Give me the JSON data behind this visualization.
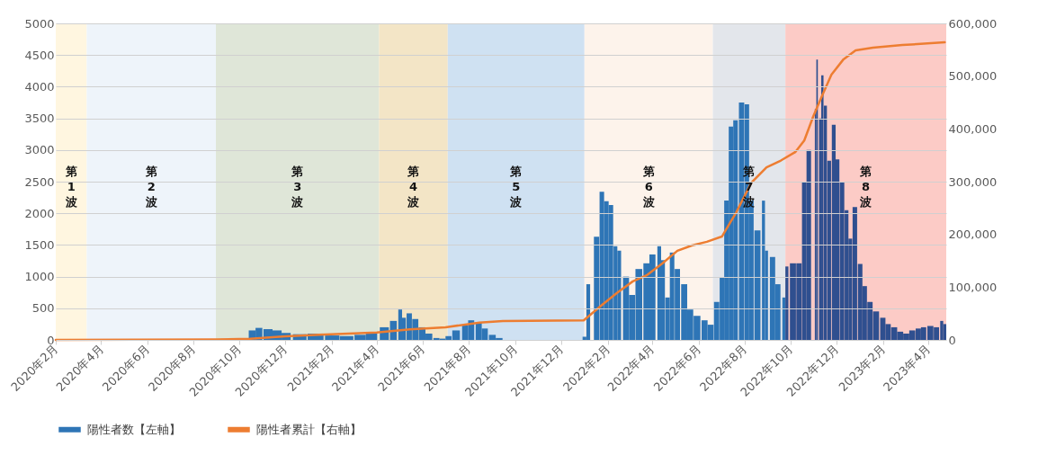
{
  "chart_data": {
    "type": "bar",
    "xlim": [
      "2020-02-01",
      "2023-04-25"
    ],
    "xticks": [
      {
        "value": "2020-02",
        "label": "2020年2月"
      },
      {
        "value": "2020-04",
        "label": "2020年4月"
      },
      {
        "value": "2020-06",
        "label": "2020年6月"
      },
      {
        "value": "2020-08",
        "label": "2020年8月"
      },
      {
        "value": "2020-10",
        "label": "2020年10月"
      },
      {
        "value": "2020-12",
        "label": "2020年12月"
      },
      {
        "value": "2021-02",
        "label": "2021年2月"
      },
      {
        "value": "2021-04",
        "label": "2021年4月"
      },
      {
        "value": "2021-06",
        "label": "2021年6月"
      },
      {
        "value": "2021-08",
        "label": "2021年8月"
      },
      {
        "value": "2021-10",
        "label": "2021年10月"
      },
      {
        "value": "2021-12",
        "label": "2021年12月"
      },
      {
        "value": "2022-02",
        "label": "2022年2月"
      },
      {
        "value": "2022-04",
        "label": "2022年4月"
      },
      {
        "value": "2022-06",
        "label": "2022年6月"
      },
      {
        "value": "2022-08",
        "label": "2022年8月"
      },
      {
        "value": "2022-10",
        "label": "2022年10月"
      },
      {
        "value": "2022-12",
        "label": "2022年12月"
      },
      {
        "value": "2023-02",
        "label": "2023年2月"
      },
      {
        "value": "2023-04",
        "label": "2023年4月"
      }
    ],
    "ylim": [
      0,
      5000
    ],
    "yticks": [
      0,
      500,
      1000,
      1500,
      2000,
      2500,
      3000,
      3500,
      4000,
      4500,
      5000
    ],
    "y2lim": [
      0,
      600000
    ],
    "y2ticks": [
      0,
      {
        "value": 100000,
        "label": "100,000"
      },
      {
        "value": 200000,
        "label": "200,000"
      },
      {
        "value": 300000,
        "label": "300,000"
      },
      {
        "value": 400000,
        "label": "400,000"
      },
      {
        "value": 500000,
        "label": "500,000"
      },
      {
        "value": 600000,
        "label": "600,000"
      }
    ],
    "grid": "y",
    "legend": "bottom",
    "bands": [
      {
        "axis": "x",
        "from": "2020-02-01",
        "to": "2020-03-13",
        "label": "第1波",
        "color": "#fff6e0"
      },
      {
        "axis": "x",
        "from": "2020-03-13",
        "to": "2020-08-31",
        "label": "第2波",
        "color": "#eef4fa"
      },
      {
        "axis": "x",
        "from": "2020-08-31",
        "to": "2021-04-04",
        "label": "第3波",
        "color": "#dfe6d8"
      },
      {
        "axis": "x",
        "from": "2021-04-04",
        "to": "2021-07-04",
        "label": "第4波",
        "color": "#f3e5c6"
      },
      {
        "axis": "x",
        "from": "2021-07-04",
        "to": "2022-01-01",
        "label": "第5波",
        "color": "#cfe1f2"
      },
      {
        "axis": "x",
        "from": "2022-01-01",
        "to": "2022-06-20",
        "label": "第6波",
        "color": "#fdf3eb"
      },
      {
        "axis": "x",
        "from": "2022-06-20",
        "to": "2022-09-24",
        "label": "第7波",
        "color": "#e3e6eb"
      },
      {
        "axis": "x",
        "from": "2022-09-24",
        "to": "2023-04-25",
        "label": "第8波",
        "color": "#fccbc6"
      }
    ],
    "series": [
      {
        "name": "陽性者数【左軸】",
        "color": "#2e75b6",
        "x": [
          "2020-10-18",
          "2020-10-27",
          "2020-11-08",
          "2020-11-20",
          "2020-12-02",
          "2020-12-20",
          "2021-01-10",
          "2021-02-01",
          "2021-02-20",
          "2021-03-10",
          "2021-03-25",
          "2021-04-11",
          "2021-04-23",
          "2021-05-02",
          "2021-05-07",
          "2021-05-14",
          "2021-05-22",
          "2021-05-31",
          "2021-06-09",
          "2021-06-19",
          "2021-06-27",
          "2021-07-05",
          "2021-07-15",
          "2021-07-27",
          "2021-08-04",
          "2021-08-14",
          "2021-08-22",
          "2021-09-01",
          "2021-09-10",
          "2022-01-01",
          "2022-01-06",
          "2022-01-17",
          "2022-01-24",
          "2022-01-30",
          "2022-02-05",
          "2022-02-11",
          "2022-02-16",
          "2022-02-25",
          "2022-03-05",
          "2022-03-14",
          "2022-03-24",
          "2022-04-01",
          "2022-04-10",
          "2022-04-15",
          "2022-04-21",
          "2022-04-27",
          "2022-05-04",
          "2022-05-13",
          "2022-05-21",
          "2022-05-30",
          "2022-06-09",
          "2022-06-17",
          "2022-06-25",
          "2022-07-02",
          "2022-07-08",
          "2022-07-14",
          "2022-07-20",
          "2022-07-28",
          "2022-08-04",
          "2022-08-10",
          "2022-08-18",
          "2022-08-26",
          "2022-08-30",
          "2022-09-07",
          "2022-09-14",
          "2022-09-22",
          "2022-09-26",
          "2022-10-04",
          "2022-10-12",
          "2022-10-19",
          "2022-10-25",
          "2022-11-03",
          "2022-11-05",
          "2022-11-09",
          "2022-11-12",
          "2022-11-16",
          "2022-11-21",
          "2022-11-27",
          "2022-12-02",
          "2022-12-08",
          "2022-12-14",
          "2022-12-19",
          "2022-12-25",
          "2023-01-01",
          "2023-01-07",
          "2023-01-14",
          "2023-01-22",
          "2023-01-31",
          "2023-02-07",
          "2023-02-15",
          "2023-02-23",
          "2023-03-03",
          "2023-03-11",
          "2023-03-19",
          "2023-03-26",
          "2023-04-04",
          "2023-04-12",
          "2023-04-19",
          "2023-04-23"
        ],
        "values": [
          150,
          190,
          170,
          150,
          110,
          90,
          100,
          70,
          60,
          80,
          120,
          200,
          300,
          480,
          350,
          420,
          330,
          200,
          100,
          30,
          20,
          60,
          150,
          230,
          310,
          280,
          180,
          80,
          30,
          50,
          880,
          1630,
          2340,
          2190,
          2130,
          1480,
          1410,
          1000,
          710,
          1120,
          1210,
          1350,
          1480,
          1260,
          670,
          1380,
          1120,
          880,
          480,
          380,
          310,
          240,
          600,
          980,
          2200,
          3370,
          3470,
          3750,
          3720,
          2200,
          1730,
          2200,
          1410,
          1310,
          880,
          670,
          1160,
          1210,
          1210,
          2500,
          3000,
          3650,
          4430,
          3500,
          4180,
          3700,
          2830,
          3400,
          2850,
          2500,
          2050,
          1600,
          2100,
          1200,
          850,
          600,
          450,
          350,
          250,
          200,
          130,
          100,
          150,
          180,
          200,
          220,
          200,
          300,
          250
        ],
        "colors": [
          "#2e75b6",
          "#2e75b6",
          "#2e75b6",
          "#2e75b6",
          "#2e75b6",
          "#2e75b6",
          "#2e75b6",
          "#2e75b6",
          "#2e75b6",
          "#2e75b6",
          "#2e75b6",
          "#2e75b6",
          "#2e75b6",
          "#2e75b6",
          "#2e75b6",
          "#2e75b6",
          "#2e75b6",
          "#2e75b6",
          "#2e75b6",
          "#2e75b6",
          "#2e75b6",
          "#2e75b6",
          "#2e75b6",
          "#2e75b6",
          "#2e75b6",
          "#2e75b6",
          "#2e75b6",
          "#2e75b6",
          "#2e75b6",
          "#2e75b6",
          "#2e75b6",
          "#2e75b6",
          "#2e75b6",
          "#2e75b6",
          "#2e75b6",
          "#2e75b6",
          "#2e75b6",
          "#2e75b6",
          "#2e75b6",
          "#2e75b6",
          "#2e75b6",
          "#2e75b6",
          "#2e75b6",
          "#2e75b6",
          "#2e75b6",
          "#2e75b6",
          "#2e75b6",
          "#2e75b6",
          "#2e75b6",
          "#2e75b6",
          "#2e75b6",
          "#2e75b6",
          "#2e75b6",
          "#2e75b6",
          "#2e75b6",
          "#2e75b6",
          "#2e75b6",
          "#2e75b6",
          "#2e75b6",
          "#2e75b6",
          "#2e75b6",
          "#2e75b6",
          "#2e75b6",
          "#2e75b6",
          "#2e75b6",
          "#2e75b6",
          "#2f4f8f",
          "#2f4f8f",
          "#2f4f8f",
          "#2f4f8f",
          "#2f4f8f",
          "#2f4f8f",
          "#2f4f8f",
          "#2f4f8f",
          "#2f4f8f",
          "#2f4f8f",
          "#2f4f8f",
          "#2f4f8f",
          "#2f4f8f",
          "#2f4f8f",
          "#2f4f8f",
          "#2f4f8f",
          "#2f4f8f",
          "#2f4f8f",
          "#2f4f8f",
          "#2f4f8f",
          "#2f4f8f",
          "#2f4f8f",
          "#2f4f8f",
          "#2f4f8f",
          "#2f4f8f",
          "#2f4f8f",
          "#2f4f8f",
          "#2f4f8f",
          "#2f4f8f",
          "#2f4f8f",
          "#2f4f8f",
          "#2f4f8f",
          "#2f4f8f"
        ]
      },
      {
        "name": "陽性者累計【右軸】",
        "type": "line",
        "axis": "y2",
        "color": "#ed7d31",
        "x": [
          "2020-02-01",
          "2020-09-01",
          "2020-10-15",
          "2020-12-01",
          "2021-01-15",
          "2021-04-01",
          "2021-05-15",
          "2021-07-01",
          "2021-08-15",
          "2021-09-15",
          "2021-12-31",
          "2022-01-24",
          "2022-02-13",
          "2022-03-06",
          "2022-03-25",
          "2022-04-14",
          "2022-05-04",
          "2022-05-23",
          "2022-06-12",
          "2022-07-02",
          "2022-07-21",
          "2022-08-10",
          "2022-08-30",
          "2022-09-18",
          "2022-10-07",
          "2022-10-19",
          "2022-10-31",
          "2022-11-12",
          "2022-11-24",
          "2022-12-10",
          "2022-12-26",
          "2023-01-18",
          "2023-02-26",
          "2023-04-23"
        ],
        "values": [
          0,
          1000,
          2000,
          7000,
          10000,
          14000,
          20000,
          24000,
          33000,
          36000,
          37000,
          66000,
          89000,
          111000,
          123000,
          145000,
          169000,
          179000,
          186000,
          196000,
          242000,
          298000,
          327000,
          340000,
          356000,
          378000,
          424000,
          464000,
          503000,
          532000,
          549000,
          554000,
          559000,
          564000
        ]
      }
    ]
  }
}
